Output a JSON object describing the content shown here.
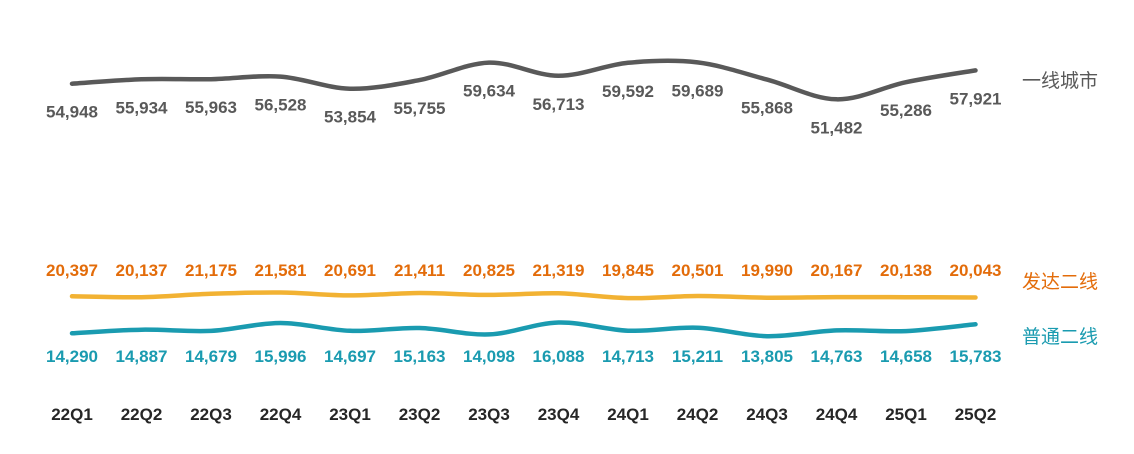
{
  "chart_data": {
    "type": "line",
    "categories": [
      "22Q1",
      "22Q2",
      "22Q3",
      "22Q4",
      "23Q1",
      "23Q2",
      "23Q3",
      "23Q4",
      "24Q1",
      "24Q2",
      "24Q3",
      "24Q4",
      "25Q1",
      "25Q2"
    ],
    "series": [
      {
        "name": "一线城市",
        "color": "#595959",
        "values": [
          54948,
          55934,
          55963,
          56528,
          53854,
          55755,
          59634,
          56713,
          59592,
          59689,
          55868,
          51482,
          55286,
          57921
        ],
        "labels": [
          "54,948",
          "55,934",
          "55,963",
          "56,528",
          "53,854",
          "55,755",
          "59,634",
          "56,713",
          "59,592",
          "59,689",
          "55,868",
          "51,482",
          "55,286",
          "57,921"
        ]
      },
      {
        "name": "发达二线",
        "color": "#F2B233",
        "label_color": "#E36C0A",
        "values": [
          20397,
          20137,
          21175,
          21581,
          20691,
          21411,
          20825,
          21319,
          19845,
          20501,
          19990,
          20167,
          20138,
          20043
        ],
        "labels": [
          "20,397",
          "20,137",
          "21,175",
          "21,581",
          "20,691",
          "21,411",
          "20,825",
          "21,319",
          "19,845",
          "20,501",
          "19,990",
          "20,167",
          "20,138",
          "20,043"
        ]
      },
      {
        "name": "普通二线",
        "color": "#1A9BB0",
        "label_color": "#1A9BB0",
        "values": [
          14290,
          14887,
          14679,
          15996,
          14697,
          15163,
          14098,
          16088,
          14713,
          15211,
          13805,
          14763,
          14658,
          15783
        ],
        "labels": [
          "14,290",
          "14,887",
          "14,679",
          "15,996",
          "14,697",
          "15,163",
          "14,098",
          "16,088",
          "14,713",
          "15,211",
          "13,805",
          "14,763",
          "14,658",
          "15,783"
        ]
      }
    ],
    "xlabel": "",
    "ylabel": "",
    "grid": false,
    "legend": "right, inline at line ends"
  }
}
